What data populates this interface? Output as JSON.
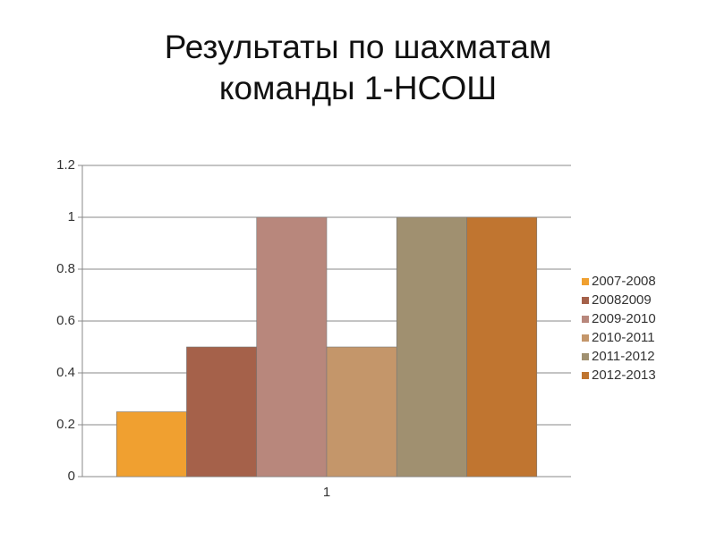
{
  "chart_data": {
    "type": "bar",
    "title": [
      "Результаты по шахматам",
      "команды 1-НСОШ"
    ],
    "categories": [
      "1"
    ],
    "series": [
      {
        "name": "2007-2008",
        "color": "#f0a030",
        "values": [
          0.25
        ]
      },
      {
        "name": "20082009",
        "color": "#a5614a",
        "values": [
          0.5
        ]
      },
      {
        "name": "2009-2010",
        "color": "#b8877c",
        "values": [
          1
        ]
      },
      {
        "name": "2010-2011",
        "color": "#c4966a",
        "values": [
          0.5
        ]
      },
      {
        "name": "2011-2012",
        "color": "#a09070",
        "values": [
          1
        ]
      },
      {
        "name": "2012-2013",
        "color": "#c07530",
        "values": [
          1
        ]
      }
    ],
    "ylim": [
      0,
      1.2
    ],
    "yticks": [
      0,
      0.2,
      0.4,
      0.6,
      0.8,
      1,
      1.2
    ],
    "grid": true,
    "legend": "right"
  }
}
